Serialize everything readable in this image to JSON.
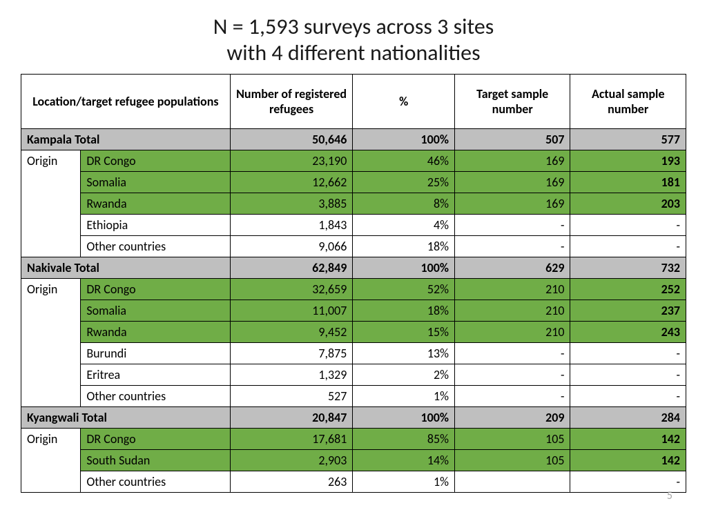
{
  "title_line1": "N = 1,593 surveys across 3 sites",
  "title_line2": "with 4 different nationalities",
  "page_number": "5",
  "columns": {
    "c1": "Location/target refugee populations",
    "c2": "Number of registered refugees",
    "c3": "%",
    "c4": "Target sample number",
    "c5": "Actual sample number"
  },
  "origin_label": "Origin",
  "sites": {
    "kampala": {
      "name": "Kampala Total",
      "registered": "50,646",
      "pct": "100%",
      "target": "507",
      "actual": "577",
      "rows": [
        {
          "name": "DR Congo",
          "registered": "23,190",
          "pct": "46%",
          "target": "169",
          "actual": "193",
          "hl": true
        },
        {
          "name": "Somalia",
          "registered": "12,662",
          "pct": "25%",
          "target": "169",
          "actual": "181",
          "hl": true
        },
        {
          "name": "Rwanda",
          "registered": "3,885",
          "pct": "8%",
          "target": "169",
          "actual": "203",
          "hl": true
        },
        {
          "name": "Ethiopia",
          "registered": "1,843",
          "pct": "4%",
          "target": "-",
          "actual": "-",
          "hl": false
        },
        {
          "name": "Other countries",
          "registered": "9,066",
          "pct": "18%",
          "target": "-",
          "actual": "-",
          "hl": false
        }
      ]
    },
    "nakivale": {
      "name": "Nakivale Total",
      "registered": "62,849",
      "pct": "100%",
      "target": "629",
      "actual": "732",
      "rows": [
        {
          "name": "DR Congo",
          "registered": "32,659",
          "pct": "52%",
          "target": "210",
          "actual": "252",
          "hl": true
        },
        {
          "name": "Somalia",
          "registered": "11,007",
          "pct": "18%",
          "target": "210",
          "actual": "237",
          "hl": true
        },
        {
          "name": "Rwanda",
          "registered": "9,452",
          "pct": "15%",
          "target": "210",
          "actual": "243",
          "hl": true
        },
        {
          "name": "Burundi",
          "registered": "7,875",
          "pct": "13%",
          "target": "-",
          "actual": "-",
          "hl": false
        },
        {
          "name": "Eritrea",
          "registered": "1,329",
          "pct": "2%",
          "target": "-",
          "actual": "-",
          "hl": false
        },
        {
          "name": "Other countries",
          "registered": "527",
          "pct": "1%",
          "target": "-",
          "actual": "-",
          "hl": false
        }
      ]
    },
    "kyangwali": {
      "name": "Kyangwali Total",
      "registered": "20,847",
      "pct": "100%",
      "target": "209",
      "actual": "284",
      "rows": [
        {
          "name": "DR Congo",
          "registered": "17,681",
          "pct": "85%",
          "target": "105",
          "actual": "142",
          "hl": true
        },
        {
          "name": "South Sudan",
          "registered": "2,903",
          "pct": "14%",
          "target": "105",
          "actual": "142",
          "hl": true
        },
        {
          "name": "Other countries",
          "registered": "263",
          "pct": "1%",
          "target": "",
          "actual": "-",
          "hl": false
        }
      ]
    }
  },
  "col_widths": {
    "c1a": "70",
    "c1b": "220",
    "c2": "180",
    "c3": "150",
    "c4": "170",
    "c5": "170"
  },
  "colors": {
    "total_bg": "#bfbfbf",
    "highlight_bg": "#70ad47",
    "border": "#000000",
    "page_num": "#a6a6a6"
  }
}
